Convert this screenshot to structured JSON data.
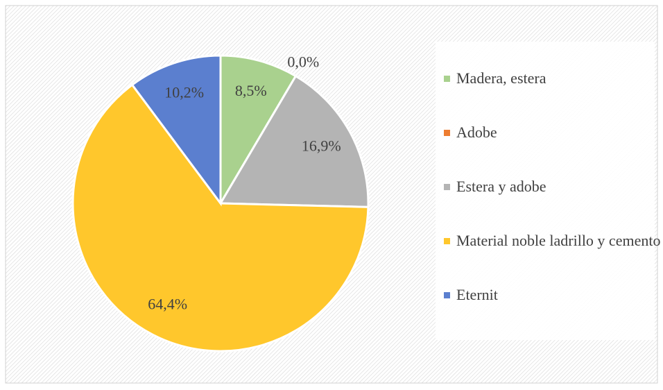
{
  "chart_data": {
    "type": "pie",
    "categories": [
      "Madera, estera",
      "Adobe",
      "Estera y adobe",
      "Material noble ladrillo y cemento",
      "Eternit"
    ],
    "values": [
      8.5,
      0.0,
      16.9,
      64.4,
      10.2
    ],
    "value_labels": [
      "8,5%",
      "0,0%",
      "16,9%",
      "64,4%",
      "10,2%"
    ],
    "colors": [
      "#a9d18e",
      "#ed7d31",
      "#b4b4b4",
      "#ffc72c",
      "#5b7fcf"
    ],
    "legend": "right"
  }
}
